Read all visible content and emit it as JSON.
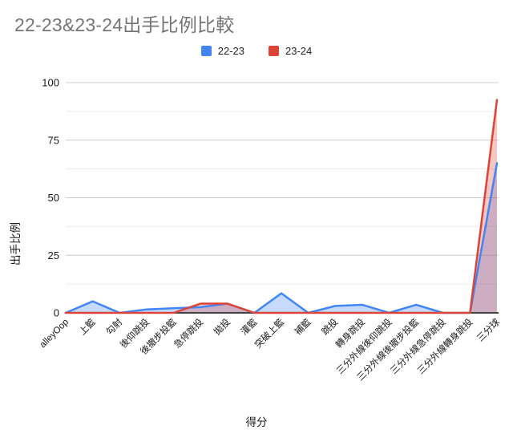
{
  "title": "22-23&23-24出手比例比較",
  "legend": {
    "items": [
      {
        "label": "22-23",
        "color": "#4285F4"
      },
      {
        "label": "23-24",
        "color": "#DB4437"
      }
    ]
  },
  "colors": {
    "title_text": "#757575",
    "axis_text": "#1a1a1a",
    "major_gridline": "#cccccc",
    "minor_gridline": "#ececec",
    "baseline": "#424242",
    "background": "#ffffff"
  },
  "chart_data": {
    "type": "area",
    "title": "22-23&23-24出手比例比較",
    "xlabel": "得分",
    "ylabel": "出手比例",
    "ylim": [
      0,
      100
    ],
    "yticks": [
      0,
      25,
      50,
      75,
      100
    ],
    "minor_grid_step": 12.5,
    "grid": "horizontal, major + minor",
    "legend_position": "top-center",
    "categories": [
      "alleyOop",
      "上籃",
      "勾射",
      "後仰跳投",
      "後撤步投籃",
      "急停跳投",
      "拋投",
      "灌籃",
      "突破上籃",
      "補籃",
      "跳投",
      "轉身跳投",
      "三分外線後仰跳投",
      "三分外線後撤步投籃",
      "三分外線急停跳投",
      "三分外線轉身跳投",
      "三分球"
    ],
    "series": [
      {
        "name": "22-23",
        "color": "#4285F4",
        "fill_opacity": 0.3,
        "values": [
          0,
          5,
          0,
          1.5,
          2,
          2.5,
          4,
          0,
          8.5,
          0,
          3,
          3.5,
          0,
          3.5,
          0,
          0,
          65
        ]
      },
      {
        "name": "23-24",
        "color": "#DB4437",
        "fill_opacity": 0.3,
        "values": [
          0,
          0,
          0,
          0,
          0,
          4,
          4,
          0,
          0,
          0,
          0,
          0,
          0,
          0,
          0,
          0,
          92.5
        ]
      }
    ]
  }
}
